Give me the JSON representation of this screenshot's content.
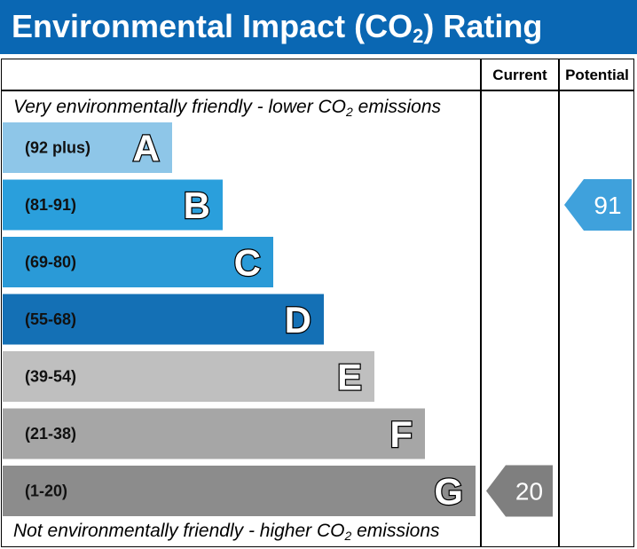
{
  "header": {
    "title_before": "Environmental Impact (CO",
    "title_sub": "2",
    "title_after": ") Rating"
  },
  "columns": {
    "current": "Current",
    "potential": "Potential"
  },
  "captions": {
    "top_before": "Very environmentally friendly - lower CO",
    "top_sub": "2",
    "top_after": " emissions",
    "bottom_before": "Not environmentally friendly - higher CO",
    "bottom_sub": "2",
    "bottom_after": " emissions"
  },
  "chart_data": {
    "type": "bar",
    "categories": [
      "A",
      "B",
      "C",
      "D",
      "E",
      "F",
      "G"
    ],
    "ranges": [
      "(92 plus)",
      "(81-91)",
      "(69-80)",
      "(55-68)",
      "(39-54)",
      "(21-38)",
      "(1-20)"
    ],
    "colors": [
      "#8ec6e8",
      "#2a9fdc",
      "#2a9ad7",
      "#1470b5",
      "#bfbfbf",
      "#a6a6a6",
      "#8c8c8c"
    ],
    "ratings": {
      "current": {
        "value": 20,
        "band": "G",
        "color": "#7f7f7f"
      },
      "potential": {
        "value": 91,
        "band": "B",
        "color": "#3fa1dc"
      }
    }
  }
}
